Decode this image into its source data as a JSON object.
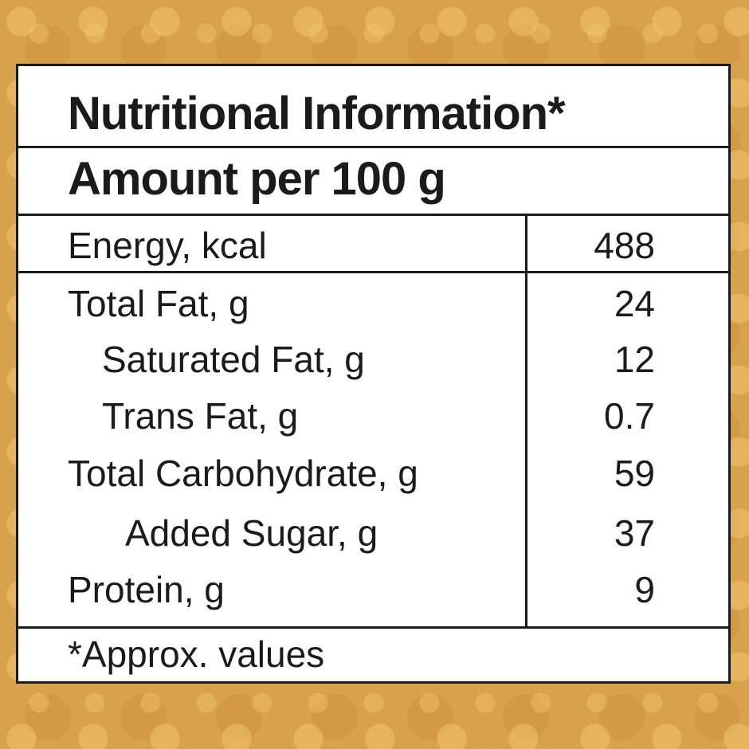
{
  "panel": {
    "title": "Nutritional Information*",
    "subtitle": "Amount per 100 g",
    "rows": [
      {
        "label": "Energy, kcal",
        "value": "488"
      },
      {
        "label": "Total Fat, g",
        "value": "24"
      },
      {
        "label": "Saturated Fat, g",
        "value": "12"
      },
      {
        "label": "Trans Fat, g",
        "value": "0.7"
      },
      {
        "label": "Total Carbohydrate, g",
        "value": "59"
      },
      {
        "label": "Added Sugar, g",
        "value": "37"
      },
      {
        "label": "Protein, g",
        "value": "9"
      }
    ],
    "footnote": "*Approx. values"
  },
  "colors": {
    "background": "#d8a24a",
    "panel": "#ffffff",
    "ink": "#1b1b1b"
  }
}
